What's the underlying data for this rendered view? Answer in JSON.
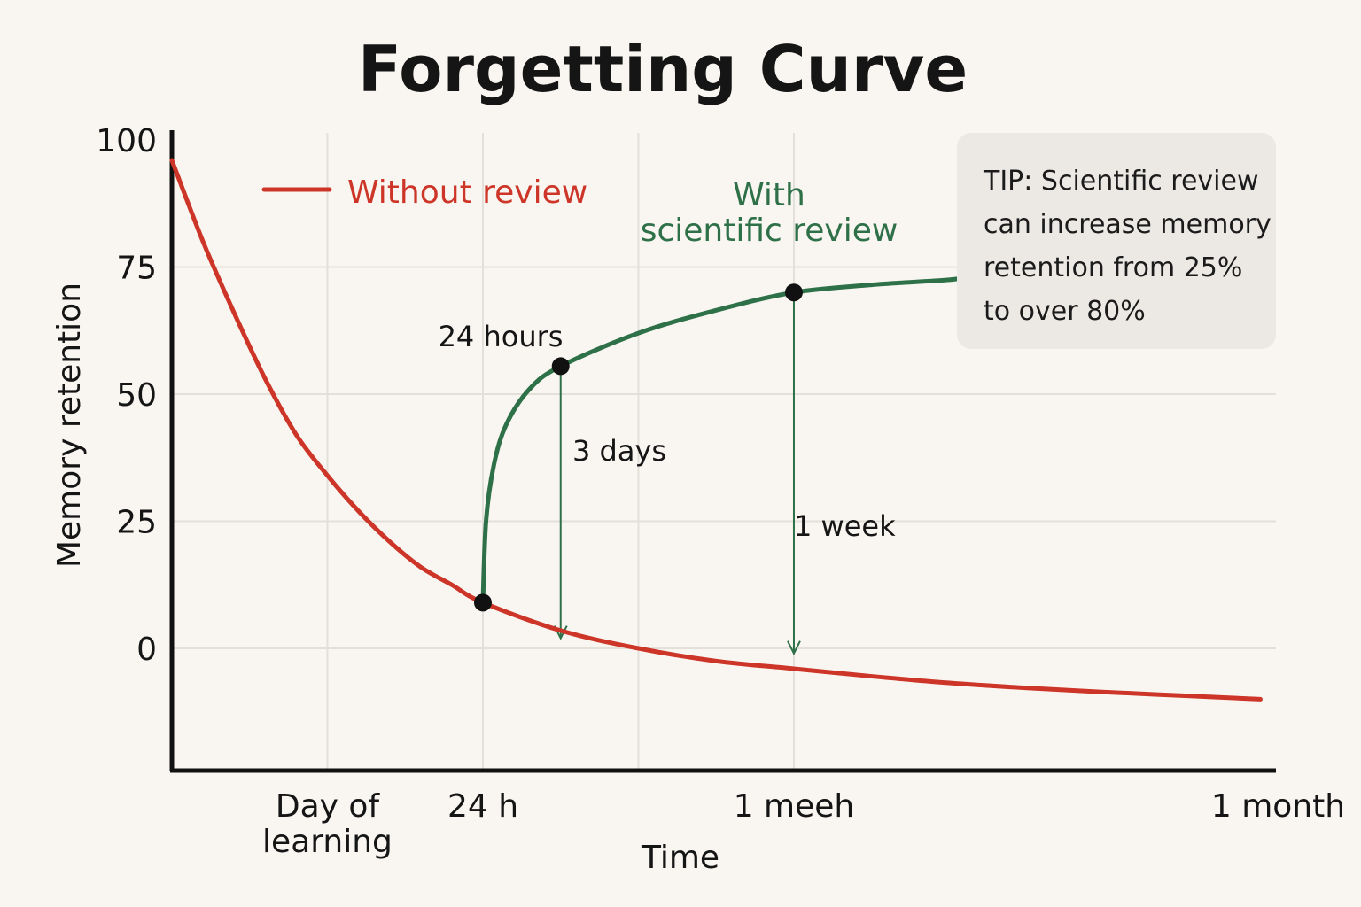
{
  "chart_data": {
    "type": "line",
    "title": "Forgetting Curve",
    "xlabel": "Time",
    "ylabel": "Memory retention",
    "yticks": [
      "100",
      "75",
      "50",
      "25",
      "0"
    ],
    "ylim": [
      -24,
      100
    ],
    "xticks": [
      {
        "label": "Day of\nlearning",
        "pos": 1
      },
      {
        "label": "24 h",
        "pos": 2
      },
      {
        "label": "1 meeh",
        "pos": 4
      },
      {
        "label": "1 month",
        "pos": 7
      }
    ],
    "xlim": [
      0,
      7.1
    ],
    "grid": true,
    "series": [
      {
        "name": "Without review",
        "color": "#cc3527",
        "points": [
          [
            0,
            96
          ],
          [
            0.2,
            80
          ],
          [
            0.4,
            66
          ],
          [
            0.6,
            53
          ],
          [
            0.8,
            42
          ],
          [
            1.0,
            34
          ],
          [
            1.2,
            27
          ],
          [
            1.4,
            21
          ],
          [
            1.6,
            16
          ],
          [
            1.8,
            12.5
          ],
          [
            2.0,
            9
          ],
          [
            2.5,
            3.5
          ],
          [
            3.0,
            0
          ],
          [
            3.5,
            -2.5
          ],
          [
            4.0,
            -4
          ],
          [
            4.5,
            -5.5
          ],
          [
            5.0,
            -6.8
          ],
          [
            5.5,
            -7.8
          ],
          [
            6.0,
            -8.6
          ],
          [
            6.5,
            -9.3
          ],
          [
            7.0,
            -10
          ]
        ]
      },
      {
        "name": "With\nscientific review",
        "color": "#2e7048",
        "points": [
          [
            2.0,
            9
          ],
          [
            2.02,
            25
          ],
          [
            2.07,
            36
          ],
          [
            2.15,
            44
          ],
          [
            2.3,
            51
          ],
          [
            2.5,
            55.5
          ],
          [
            3.0,
            62
          ],
          [
            3.5,
            66.5
          ],
          [
            4.0,
            70
          ],
          [
            4.5,
            71.5
          ],
          [
            5.0,
            72.5
          ],
          [
            5.1,
            73
          ]
        ]
      }
    ],
    "markers": [
      [
        2.0,
        9
      ],
      [
        2.5,
        55.5
      ],
      [
        4.0,
        70
      ]
    ],
    "drops": [
      {
        "x": 2.5,
        "from": 55.5,
        "to": 2
      },
      {
        "x": 4.0,
        "from": 70,
        "to": -1
      }
    ],
    "annotations": [
      "24 hours",
      "3 days",
      "1 week"
    ]
  },
  "tip": {
    "lines": [
      "TIP: Scientific review",
      "can increase memory",
      "retention from 25%",
      "to over 80%"
    ]
  }
}
